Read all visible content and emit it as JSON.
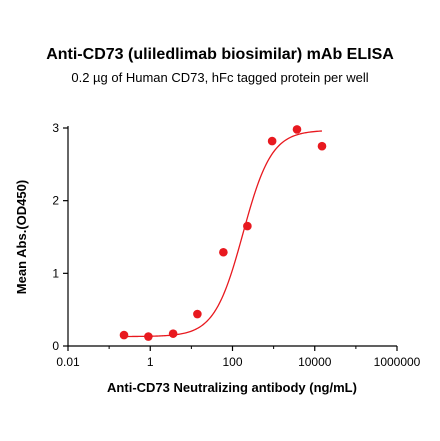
{
  "chart_data": {
    "type": "scatter",
    "title": "Anti-CD73 (uliledlimab biosimilar) mAb ELISA",
    "subtitle": "0.2 µg of Human CD73, hFc tagged protein per well",
    "xlabel": "Anti-CD73 Neutralizing antibody (ng/mL)",
    "ylabel": "Mean Abs.(OD450)",
    "x_scale": "log",
    "xlim": [
      0.01,
      1000000
    ],
    "ylim": [
      0,
      3
    ],
    "x_ticks": [
      "0.01",
      "1",
      "100",
      "10000",
      "1000000"
    ],
    "y_ticks": [
      "0",
      "1",
      "2",
      "3"
    ],
    "grid": false,
    "marker_color": "#e8191f",
    "curve_color": "#e8191f",
    "series": [
      {
        "x": [
          0.23,
          0.9,
          3.6,
          14,
          60,
          230,
          920,
          3700,
          15000
        ],
        "y": [
          0.15,
          0.13,
          0.17,
          0.44,
          1.29,
          1.65,
          2.82,
          2.98,
          2.75
        ]
      }
    ],
    "fit": {
      "bottom": 0.13,
      "top": 2.97,
      "ec50": 180,
      "hill": 1.25
    }
  }
}
